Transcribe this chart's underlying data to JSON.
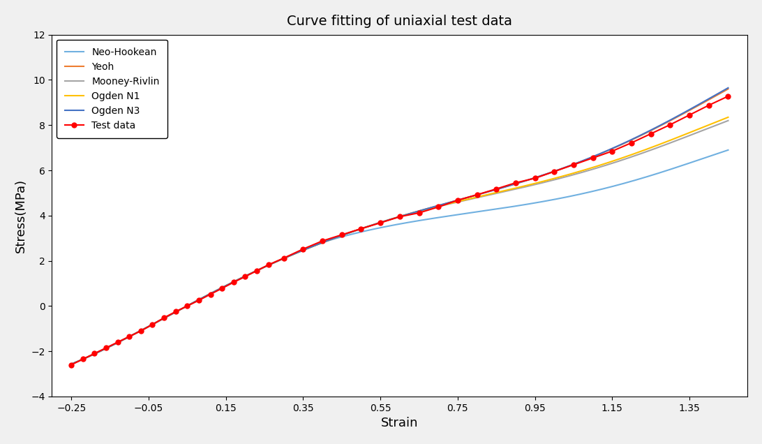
{
  "title": "Curve fitting of uniaxial test data",
  "xlabel": "Strain",
  "ylabel": "Stress(MPa)",
  "xlim": [
    -0.3,
    1.5
  ],
  "ylim": [
    -4,
    12
  ],
  "xticks": [
    -0.25,
    -0.05,
    0.15,
    0.35,
    0.55,
    0.75,
    0.95,
    1.15,
    1.35
  ],
  "yticks": [
    -4,
    -2,
    0,
    2,
    4,
    6,
    8,
    10,
    12
  ],
  "plot_background": "#ffffff",
  "figure_background": "#f0f0f0",
  "legend_entries": [
    "Neo-Hookean",
    "Yeoh",
    "Mooney-Rivlin",
    "Ogden N1",
    "Ogden N3",
    "Test data"
  ],
  "line_colors": {
    "neo_hookean": "#70B0E0",
    "yeoh": "#ED7D31",
    "mooney_rivlin": "#A5A5A5",
    "ogden_n1": "#FFC000",
    "ogden_n3": "#4472C4",
    "test_data": "#FF0000"
  },
  "test_data_x": [
    -0.25,
    -0.22,
    -0.19,
    -0.16,
    -0.13,
    -0.1,
    -0.07,
    -0.04,
    -0.01,
    0.02,
    0.05,
    0.08,
    0.11,
    0.14,
    0.17,
    0.2,
    0.23,
    0.26,
    0.3,
    0.35,
    0.4,
    0.45,
    0.5,
    0.55,
    0.6,
    0.65,
    0.7,
    0.75,
    0.8,
    0.85,
    0.9,
    0.95,
    1.0,
    1.05,
    1.1,
    1.15,
    1.2,
    1.25,
    1.3,
    1.35,
    1.4,
    1.45
  ],
  "test_data_y": [
    -2.6,
    -2.35,
    -2.1,
    -1.85,
    -1.6,
    -1.35,
    -1.1,
    -0.82,
    -0.52,
    -0.25,
    -0.0,
    0.25,
    0.52,
    0.78,
    1.05,
    1.3,
    1.56,
    1.82,
    2.12,
    2.52,
    2.88,
    3.15,
    3.42,
    3.68,
    3.95,
    4.12,
    4.38,
    4.68,
    4.92,
    5.18,
    5.45,
    5.65,
    5.95,
    6.25,
    6.55,
    6.85,
    7.22,
    7.62,
    8.02,
    8.45,
    8.88,
    9.28
  ],
  "title_fontsize": 14,
  "axis_label_fontsize": 13,
  "tick_fontsize": 10,
  "legend_fontsize": 10
}
